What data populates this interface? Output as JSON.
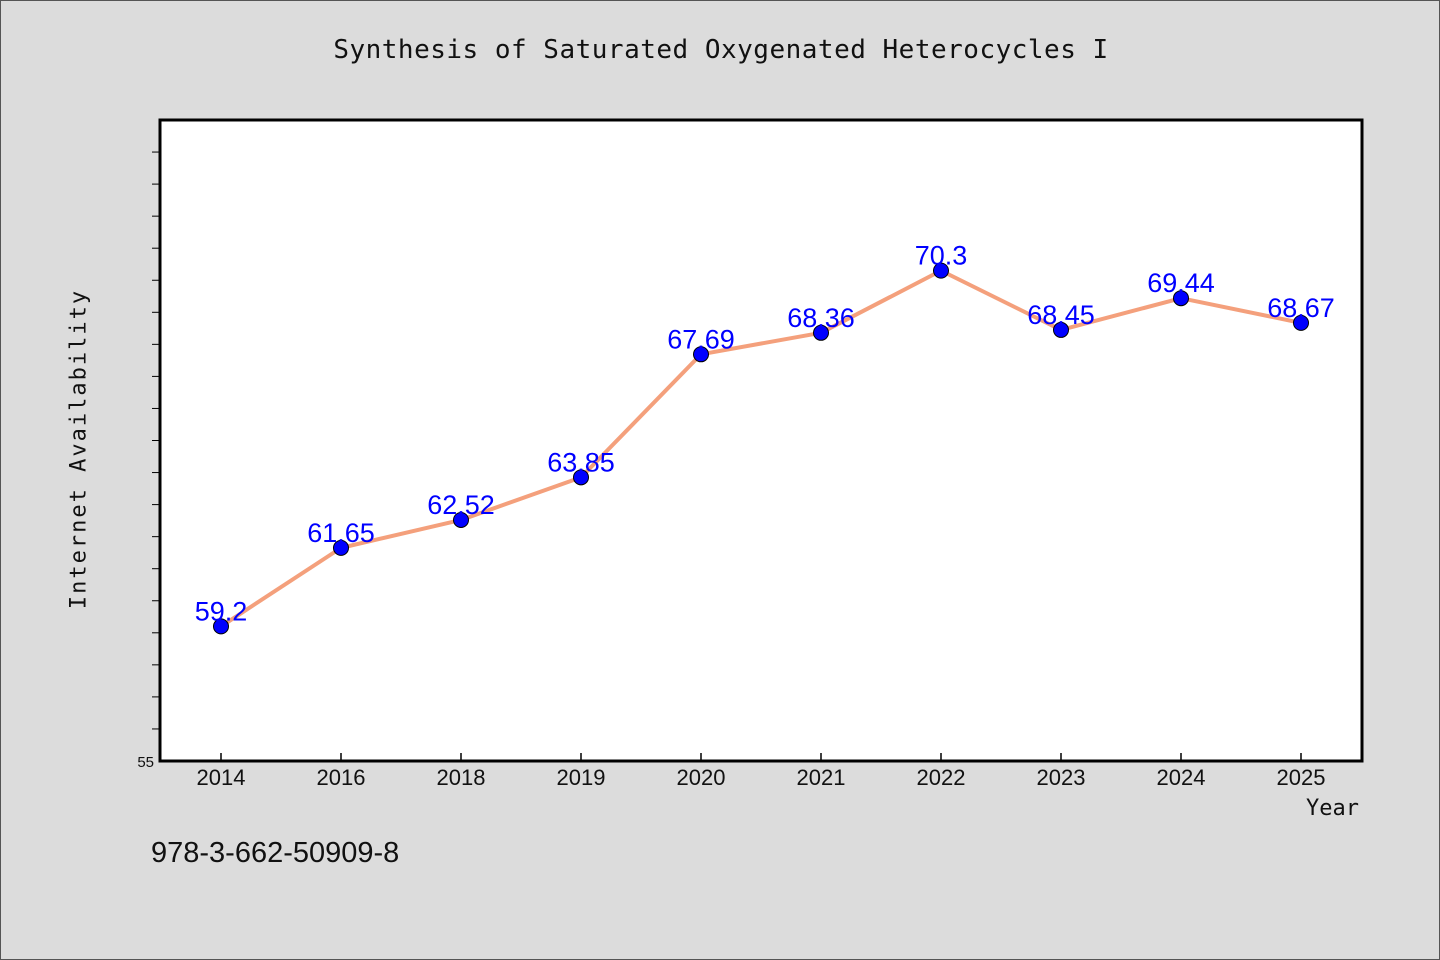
{
  "chart_data": {
    "type": "line",
    "title": "Synthesis of Saturated Oxygenated Heterocycles I",
    "xlabel": "Year",
    "ylabel": "Internet Availability",
    "categories": [
      "2014",
      "2016",
      "2018",
      "2019",
      "2020",
      "2021",
      "2022",
      "2023",
      "2024",
      "2025"
    ],
    "series": [
      {
        "values": [
          59.2,
          61.65,
          62.52,
          63.85,
          67.69,
          68.36,
          70.3,
          68.45,
          69.44,
          68.67
        ],
        "labels": [
          "59.2",
          "61.65",
          "62.52",
          "63.85",
          "67.69",
          "68.36",
          "70.3",
          "68.45",
          "69.44",
          "68.67"
        ],
        "line_color": "#f4a07c",
        "marker_color": "#0000ff",
        "label_color": "#0000ff"
      }
    ],
    "ylim": [
      55,
      75
    ],
    "y_tick_labels": [
      "55"
    ],
    "grid": false,
    "legend": "none"
  },
  "footer": {
    "isbn": "978-3-662-50909-8"
  },
  "colors": {
    "background": "#dcdcdc",
    "plot_background": "#ffffff"
  }
}
